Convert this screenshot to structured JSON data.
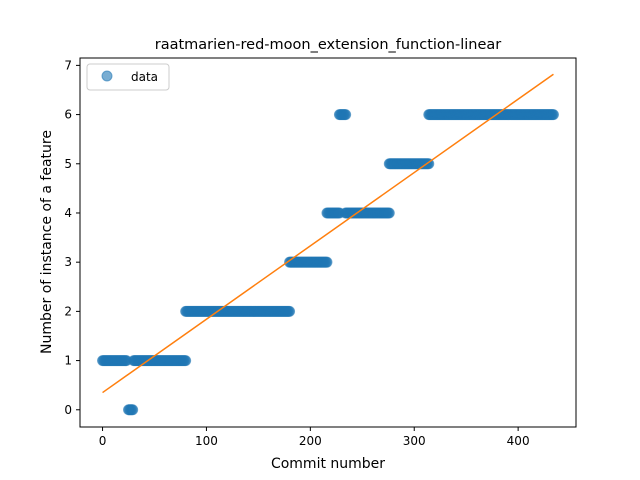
{
  "chart_data": {
    "type": "scatter",
    "title": "raatmarien-red-moon_extension_function-linear",
    "xlabel": "Commit number",
    "ylabel": "Number of instance of a feature",
    "xlim": [
      -21.7,
      455.7
    ],
    "ylim": [
      -0.35,
      7.15
    ],
    "xticks": [
      0,
      100,
      200,
      300,
      400
    ],
    "yticks": [
      0,
      1,
      2,
      3,
      4,
      5,
      6,
      7
    ],
    "grid": false,
    "legend": {
      "position": "top-left",
      "entries": [
        "data"
      ]
    },
    "colors": {
      "points": "#1f77b4",
      "fit": "#ff7f0e"
    },
    "point_runs": [
      {
        "from": 0,
        "to": 23,
        "y": 1
      },
      {
        "from": 25,
        "to": 29,
        "y": 0
      },
      {
        "from": 30,
        "to": 80,
        "y": 1
      },
      {
        "from": 80,
        "to": 180,
        "y": 2
      },
      {
        "from": 180,
        "to": 216,
        "y": 3
      },
      {
        "from": 216,
        "to": 228,
        "y": 4
      },
      {
        "from": 228,
        "to": 234,
        "y": 6
      },
      {
        "from": 234,
        "to": 276,
        "y": 4
      },
      {
        "from": 276,
        "to": 314,
        "y": 5
      },
      {
        "from": 314,
        "to": 434,
        "y": 6
      }
    ],
    "series": [
      {
        "name": "data",
        "kind": "points"
      },
      {
        "kind": "line",
        "x": [
          0,
          434
        ],
        "y": [
          0.35,
          6.82
        ]
      }
    ]
  }
}
